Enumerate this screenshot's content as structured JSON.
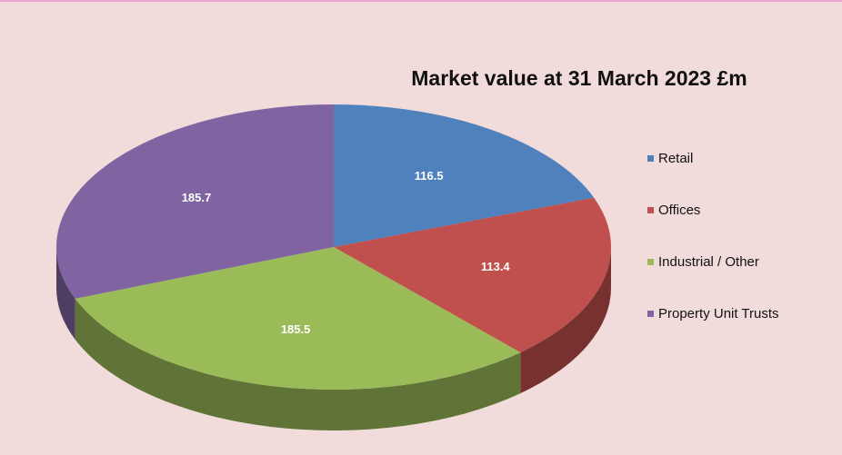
{
  "chart_data": {
    "type": "pie",
    "title": "Market value at 31 March 2023 £m",
    "categories": [
      "Retail",
      "Offices",
      "Industrial / Other",
      "Property Unit Trusts"
    ],
    "values": [
      116.5,
      113.4,
      185.5,
      185.7
    ],
    "colors": [
      "#4f81bd",
      "#c0504d",
      "#9bbb59",
      "#8064a2"
    ],
    "legend": "right"
  }
}
